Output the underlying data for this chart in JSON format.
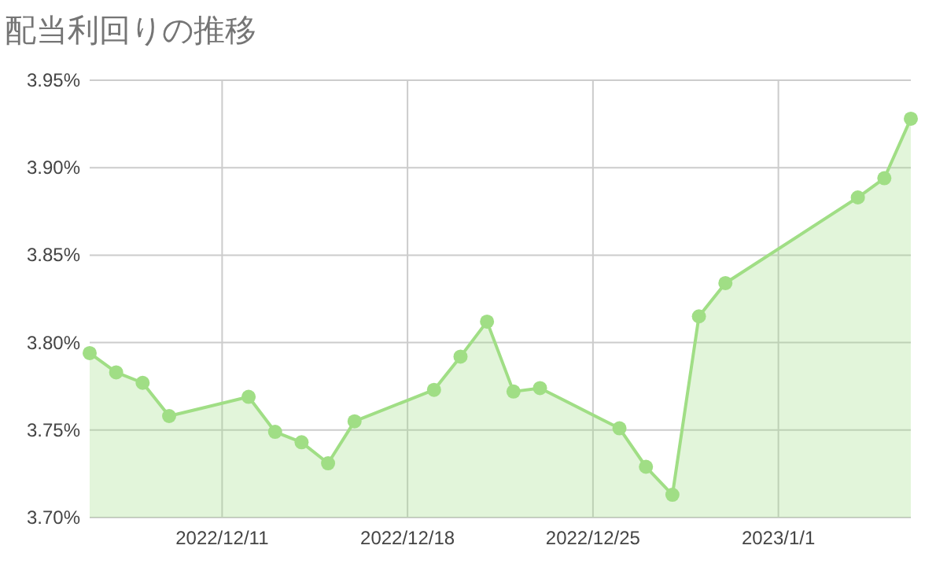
{
  "chart_data": {
    "type": "area",
    "title": "配当利回りの推移",
    "x": [
      "2022-12-06",
      "2022-12-07",
      "2022-12-08",
      "2022-12-09",
      "2022-12-12",
      "2022-12-13",
      "2022-12-14",
      "2022-12-15",
      "2022-12-16",
      "2022-12-19",
      "2022-12-20",
      "2022-12-21",
      "2022-12-22",
      "2022-12-23",
      "2022-12-26",
      "2022-12-27",
      "2022-12-28",
      "2022-12-29",
      "2022-12-30",
      "2023-01-04",
      "2023-01-05",
      "2023-01-06"
    ],
    "series": [
      {
        "color": "#a0de85",
        "values": [
          3.794,
          3.783,
          3.777,
          3.758,
          3.769,
          3.749,
          3.743,
          3.731,
          3.755,
          3.773,
          3.792,
          3.812,
          3.772,
          3.774,
          3.751,
          3.729,
          3.713,
          3.815,
          3.834,
          3.883,
          3.894,
          3.928
        ]
      }
    ],
    "xlim": [
      "2022-12-06",
      "2023-01-06"
    ],
    "xticks": [
      {
        "value": "2022-12-11",
        "label": "2022/12/11"
      },
      {
        "value": "2022-12-18",
        "label": "2022/12/18"
      },
      {
        "value": "2022-12-25",
        "label": "2022/12/25"
      },
      {
        "value": "2023-01-01",
        "label": "2023/1/1"
      }
    ],
    "ylim": [
      3.7,
      3.95
    ],
    "yticks": [
      {
        "value": 3.7,
        "label": "3.70%"
      },
      {
        "value": 3.75,
        "label": "3.75%"
      },
      {
        "value": 3.8,
        "label": "3.80%"
      },
      {
        "value": 3.85,
        "label": "3.85%"
      },
      {
        "value": 3.9,
        "label": "3.90%"
      },
      {
        "value": 3.95,
        "label": "3.95%"
      }
    ],
    "grid": true,
    "marker": "circle",
    "line_style": "solid"
  }
}
